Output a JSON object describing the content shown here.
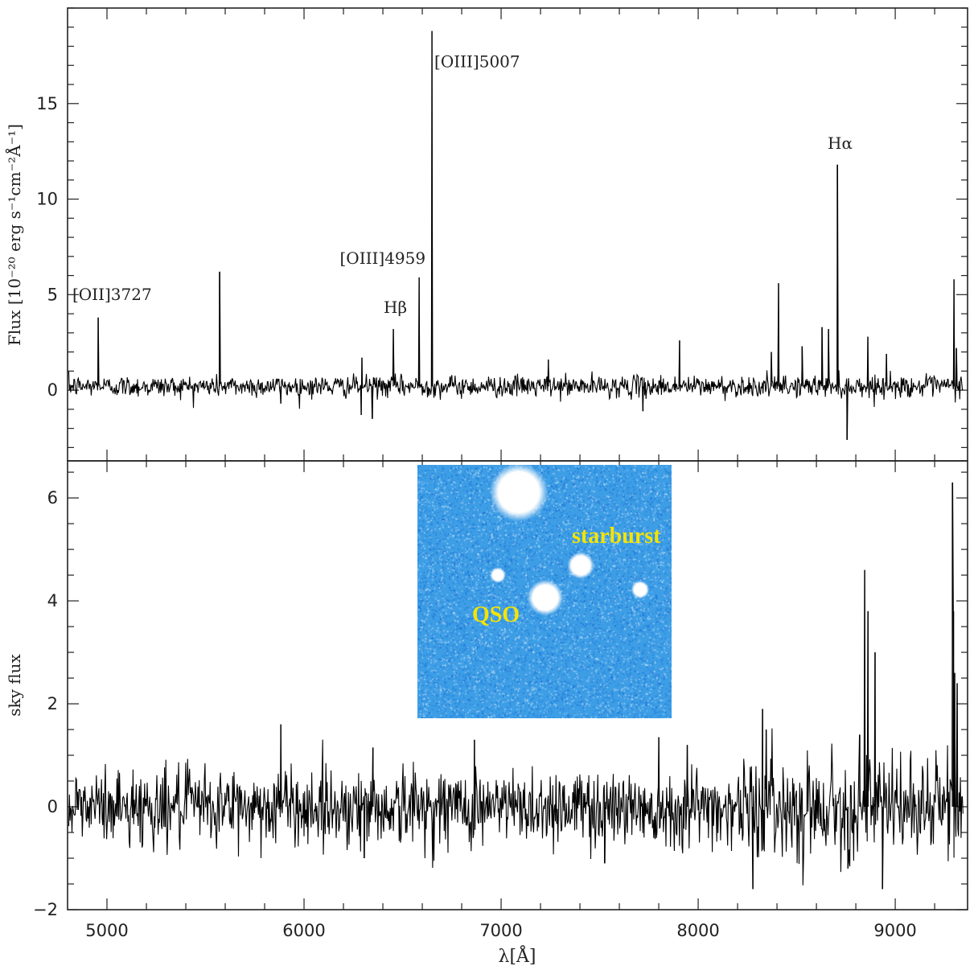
{
  "chart_data": [
    {
      "type": "line",
      "panel": "top",
      "ylabel": "Flux [10⁻²⁰ erg s⁻¹cm⁻²Å⁻¹]",
      "xlabel": "",
      "xlim": [
        4800,
        9367
      ],
      "ylim": [
        -3.7,
        20
      ],
      "yticks": [
        0,
        5,
        10,
        15
      ],
      "noise_sigma": 0.28,
      "baseline": 0.2,
      "lines": [
        {
          "x": 4955,
          "y": 3.8,
          "label": "[OII]3727"
        },
        {
          "x": 5571,
          "y": 6.2
        },
        {
          "x": 6294,
          "y": 1.7
        },
        {
          "x": 6453,
          "y": 3.2,
          "label": "Hβ"
        },
        {
          "x": 6584,
          "y": 5.9,
          "label": "[OIII]4959"
        },
        {
          "x": 6649,
          "y": 18.8,
          "label": "[OIII]5007"
        },
        {
          "x": 7240,
          "y": 1.6
        },
        {
          "x": 7906,
          "y": 2.6
        },
        {
          "x": 8371,
          "y": 2.0
        },
        {
          "x": 8408,
          "y": 5.6
        },
        {
          "x": 8527,
          "y": 2.3
        },
        {
          "x": 8706,
          "y": 11.8,
          "label": "Hα"
        },
        {
          "x": 8628,
          "y": 3.3
        },
        {
          "x": 8661,
          "y": 3.2
        },
        {
          "x": 8861,
          "y": 2.8
        },
        {
          "x": 8955,
          "y": 1.9
        },
        {
          "x": 9298,
          "y": 5.8
        },
        {
          "x": 9310,
          "y": 2.2
        },
        {
          "x": 6290,
          "y": -1.3
        },
        {
          "x": 6347,
          "y": -1.5
        },
        {
          "x": 5882,
          "y": -0.7
        },
        {
          "x": 8755,
          "y": -2.6
        },
        {
          "x": 7720,
          "y": -1.1
        }
      ]
    },
    {
      "type": "line",
      "panel": "bottom",
      "ylabel": "sky flux",
      "xlabel": "λ[Å]",
      "xlim": [
        4800,
        9367
      ],
      "ylim": [
        -2,
        6.72
      ],
      "yticks": [
        -2,
        0,
        2,
        4,
        6
      ],
      "xticks": [
        5000,
        6000,
        7000,
        8000,
        9000
      ],
      "noise_sigma": 0.38,
      "baseline": 0.0,
      "lines": [
        {
          "x": 5882,
          "y": 1.6
        },
        {
          "x": 6350,
          "y": 1.15
        },
        {
          "x": 6865,
          "y": 1.3
        },
        {
          "x": 7800,
          "y": 1.35
        },
        {
          "x": 7945,
          "y": 1.2
        },
        {
          "x": 8278,
          "y": -1.6
        },
        {
          "x": 8327,
          "y": 1.9
        },
        {
          "x": 8345,
          "y": 1.5
        },
        {
          "x": 8820,
          "y": 1.4
        },
        {
          "x": 8845,
          "y": 4.6
        },
        {
          "x": 8862,
          "y": 3.8
        },
        {
          "x": 8898,
          "y": 3.0
        },
        {
          "x": 8935,
          "y": -1.6
        },
        {
          "x": 8760,
          "y": -1.2
        },
        {
          "x": 9290,
          "y": 6.3
        },
        {
          "x": 9296,
          "y": 3.8
        },
        {
          "x": 9302,
          "y": 2.6
        },
        {
          "x": 9314,
          "y": 2.4
        },
        {
          "x": 7525,
          "y": -1.1
        },
        {
          "x": 6305,
          "y": -1.0
        }
      ]
    }
  ],
  "inset": {
    "labels": {
      "starburst": "starburst",
      "qso": "QSO"
    },
    "background_color": "#3d9ee6",
    "label_color": "#f5e400"
  }
}
